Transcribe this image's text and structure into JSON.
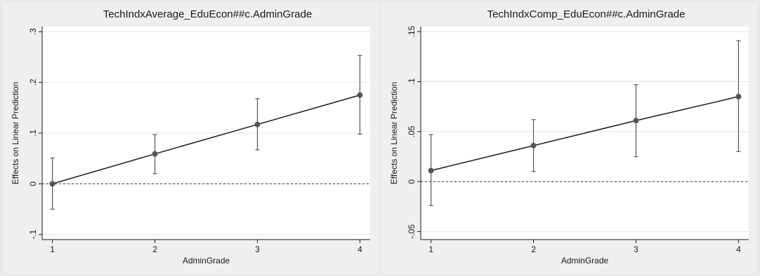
{
  "chart_data": [
    {
      "type": "line",
      "title": "TechIndxAverage_EduEcon##c.AdminGrade",
      "xlabel": "AdminGrade",
      "ylabel": "Effects on Linear Prediction",
      "x": [
        1,
        2,
        3,
        4
      ],
      "y": [
        0.0,
        0.059,
        0.117,
        0.175
      ],
      "ci_lower": [
        -0.05,
        0.02,
        0.067,
        0.098
      ],
      "ci_upper": [
        0.051,
        0.097,
        0.168,
        0.253
      ],
      "xlim": [
        0.9,
        4.1
      ],
      "ylim": [
        -0.11,
        0.31
      ],
      "xticks": [
        1,
        2,
        3,
        4
      ],
      "xtick_labels": [
        "1",
        "2",
        "3",
        "4"
      ],
      "yticks": [
        -0.1,
        0,
        0.1,
        0.2,
        0.3
      ],
      "ytick_labels": [
        "-.1",
        "0",
        ".1",
        ".2",
        ".3"
      ],
      "reference_line_y": 0,
      "grid": true,
      "line_color": "#1a1a1a",
      "marker_color": "#555555"
    },
    {
      "type": "line",
      "title": "TechIndxComp_EduEcon##c.AdminGrade",
      "xlabel": "AdminGrade",
      "ylabel": "Effects on Linear Prediction",
      "x": [
        1,
        2,
        3,
        4
      ],
      "y": [
        0.011,
        0.036,
        0.061,
        0.085
      ],
      "ci_lower": [
        -0.024,
        0.01,
        0.025,
        0.03
      ],
      "ci_upper": [
        0.047,
        0.062,
        0.097,
        0.141
      ],
      "xlim": [
        0.9,
        4.1
      ],
      "ylim": [
        -0.058,
        0.155
      ],
      "xticks": [
        1,
        2,
        3,
        4
      ],
      "xtick_labels": [
        "1",
        "2",
        "3",
        "4"
      ],
      "yticks": [
        -0.05,
        0,
        0.05,
        0.1,
        0.15
      ],
      "ytick_labels": [
        "-.05",
        "0",
        ".05",
        ".1",
        ".15"
      ],
      "reference_line_y": 0,
      "grid": true,
      "line_color": "#1a1a1a",
      "marker_color": "#555555"
    }
  ]
}
